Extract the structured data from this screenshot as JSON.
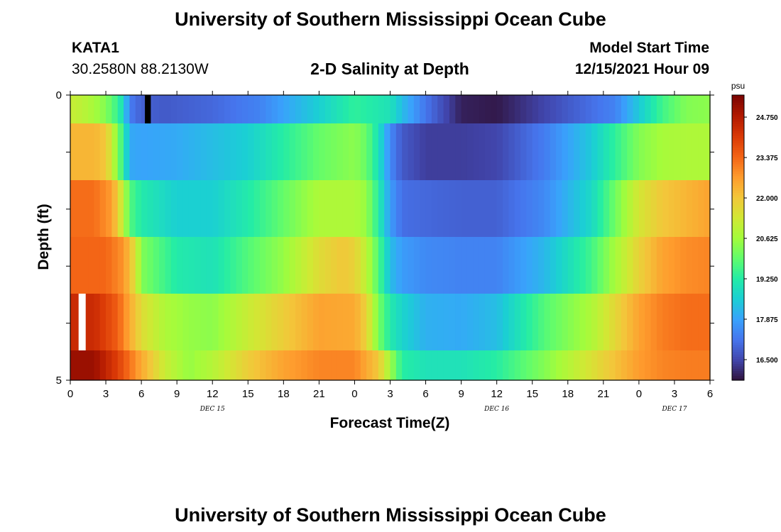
{
  "header": {
    "title": "University of Southern Mississippi Ocean Cube",
    "station_name": "KATA1",
    "station_coords": "30.2580N  88.2130W",
    "plot_title": "2-D Salinity at Depth",
    "model_start_label": "Model Start Time",
    "model_start_value": "12/15/2021 Hour 09"
  },
  "footer": {
    "title": "University of Southern Mississippi Ocean Cube"
  },
  "chart_data": {
    "type": "heatmap",
    "title": "2-D Salinity at Depth",
    "xlabel": "Forecast Time(Z)",
    "ylabel": "Depth (ft)",
    "x_tick_labels": [
      "0",
      "3",
      "6",
      "9",
      "12",
      "15",
      "18",
      "21",
      "0",
      "3",
      "6",
      "9",
      "12",
      "15",
      "18",
      "21",
      "0",
      "3",
      "6"
    ],
    "x_range_hours": [
      0,
      54
    ],
    "date_labels": [
      {
        "text": "DEC 15",
        "hour": 12
      },
      {
        "text": "DEC 16",
        "hour": 36
      },
      {
        "text": "DEC 17",
        "hour": 51
      }
    ],
    "y_tick_labels": [
      "0",
      "5"
    ],
    "y_range_ft": [
      0,
      5
    ],
    "depth_levels": 5,
    "colorbar": {
      "unit": "psu",
      "range": [
        15.8,
        25.5
      ],
      "labels": [
        "24.750",
        "23.375",
        "22.000",
        "20.625",
        "19.250",
        "17.875",
        "16.500"
      ],
      "colors": [
        "#30123b",
        "#4145ab",
        "#4675ed",
        "#39a2fc",
        "#1bcfd4",
        "#24eca6",
        "#61fc6c",
        "#a4fc3b",
        "#d1e834",
        "#f3c63a",
        "#fe9b2d",
        "#f36315",
        "#d93806",
        "#b11901",
        "#7a0402"
      ]
    },
    "missing_value_cells": [
      {
        "band": 0,
        "hour_start": 6.3,
        "hour_end": 6.8
      },
      {
        "band": 4,
        "hour_start": 0.7,
        "hour_end": 1.3
      }
    ],
    "series": [
      {
        "hours": [
          0,
          1,
          2,
          3,
          4,
          4.5,
          5,
          6,
          8,
          12,
          16,
          18,
          21,
          24,
          27,
          28,
          30,
          33,
          36,
          38,
          42,
          46,
          48,
          50,
          52,
          54
        ],
        "values": [
          21.2,
          21.0,
          20.7,
          20.3,
          19.5,
          18.8,
          17.3,
          16.9,
          16.8,
          17.0,
          17.4,
          17.9,
          18.6,
          19.4,
          19.0,
          18.3,
          17.2,
          16.0,
          15.9,
          16.2,
          16.8,
          17.4,
          18.5,
          19.6,
          20.3,
          20.4
        ]
      },
      {
        "hours": [
          0,
          2,
          3,
          3.5,
          4,
          4.5,
          5,
          6,
          9,
          12,
          15,
          18,
          21,
          24,
          25,
          26,
          27,
          28,
          30,
          33,
          36,
          40,
          44,
          48,
          50,
          52,
          54
        ],
        "values": [
          22.3,
          22.3,
          22.0,
          21.2,
          20.3,
          19.3,
          18.0,
          17.9,
          18.0,
          18.3,
          18.6,
          19.3,
          20.0,
          20.4,
          20.0,
          19.0,
          17.5,
          16.8,
          16.4,
          16.4,
          16.5,
          17.3,
          18.5,
          20.3,
          20.7,
          20.8,
          20.8
        ]
      },
      {
        "hours": [
          0,
          2,
          3.5,
          4.5,
          5,
          6,
          9,
          12,
          15,
          18,
          21,
          24,
          25,
          26,
          27,
          28,
          30,
          33,
          36,
          40,
          44,
          48,
          50,
          52,
          54
        ],
        "values": [
          23.3,
          23.3,
          22.7,
          21.0,
          19.8,
          19.2,
          18.6,
          18.6,
          19.2,
          20.0,
          20.8,
          20.8,
          20.5,
          19.3,
          17.8,
          17.1,
          17.0,
          16.9,
          16.9,
          17.5,
          18.8,
          21.4,
          22.0,
          22.3,
          22.6
        ]
      },
      {
        "hours": [
          0,
          3,
          4.5,
          5.5,
          6,
          9,
          12,
          15,
          18,
          21,
          23,
          24,
          25,
          26,
          27,
          28,
          30,
          33,
          36,
          40,
          44,
          48,
          50,
          52,
          54
        ],
        "values": [
          23.4,
          23.4,
          22.8,
          21.5,
          20.3,
          19.2,
          19.0,
          19.8,
          20.5,
          21.6,
          22.0,
          21.8,
          21.0,
          19.8,
          18.3,
          17.8,
          17.5,
          17.4,
          17.4,
          18.2,
          19.6,
          21.8,
          22.6,
          22.9,
          23.0
        ]
      },
      {
        "hours": [
          0,
          2,
          4,
          5,
          6,
          8,
          10,
          12,
          15,
          18,
          21,
          24,
          25,
          26,
          27,
          28,
          30,
          33,
          36,
          40,
          44,
          48,
          50,
          52,
          54
        ],
        "values": [
          24.4,
          24.4,
          23.5,
          22.5,
          21.6,
          20.8,
          20.5,
          20.4,
          21.2,
          21.9,
          22.6,
          22.5,
          21.8,
          20.2,
          19.2,
          18.7,
          18.1,
          18.0,
          18.3,
          19.8,
          20.8,
          22.6,
          23.1,
          23.3,
          23.3
        ]
      },
      {
        "hours": [
          0,
          2,
          4,
          6,
          8,
          10,
          12,
          15,
          18,
          21,
          24,
          26,
          28,
          30,
          33,
          36,
          40,
          44,
          48,
          50,
          52,
          54
        ],
        "values": [
          25.1,
          25.1,
          24.0,
          22.5,
          21.2,
          20.5,
          20.9,
          21.9,
          22.6,
          23.0,
          23.0,
          22.0,
          19.3,
          19.0,
          19.0,
          19.3,
          20.3,
          21.5,
          22.7,
          23.0,
          23.1,
          23.1
        ]
      }
    ]
  }
}
